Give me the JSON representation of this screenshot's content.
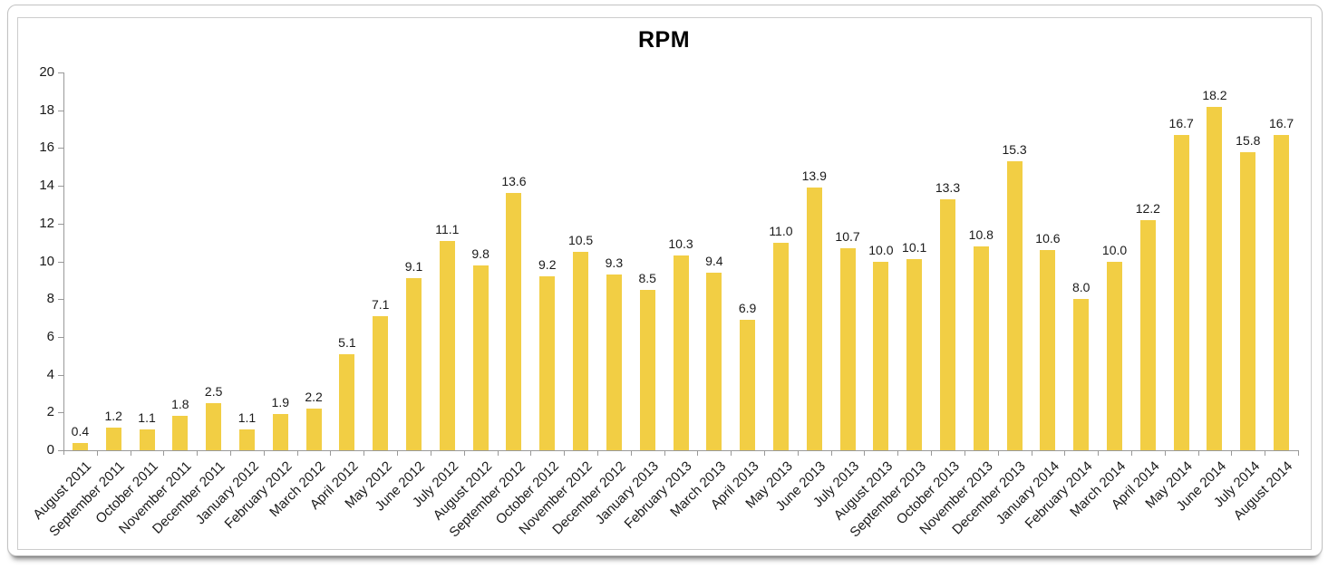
{
  "chart_data": {
    "type": "bar",
    "title": "RPM",
    "categories": [
      "August 2011",
      "September 2011",
      "October 2011",
      "November 2011",
      "December 2011",
      "January 2012",
      "February 2012",
      "March 2012",
      "April 2012",
      "May 2012",
      "June 2012",
      "July 2012",
      "August 2012",
      "September 2012",
      "October 2012",
      "November 2012",
      "December 2012",
      "January 2013",
      "February 2013",
      "March 2013",
      "April 2013",
      "May 2013",
      "June 2013",
      "July 2013",
      "August 2013",
      "September 2013",
      "October 2013",
      "November 2013",
      "December 2013",
      "January 2014",
      "February 2014",
      "March 2014",
      "April 2014",
      "May 2014",
      "June 2014",
      "July 2014",
      "August 2014"
    ],
    "values": [
      0.4,
      1.2,
      1.1,
      1.8,
      2.5,
      1.1,
      1.9,
      2.2,
      5.1,
      7.1,
      9.1,
      11.1,
      9.8,
      13.6,
      9.2,
      10.5,
      9.3,
      8.5,
      10.3,
      9.4,
      6.9,
      11.0,
      13.9,
      10.7,
      10.0,
      10.1,
      13.3,
      10.8,
      15.3,
      10.6,
      8.0,
      10.0,
      12.2,
      16.7,
      18.2,
      15.8,
      16.7
    ],
    "xlabel": "",
    "ylabel": "",
    "ylim": [
      0,
      20
    ],
    "ytick_step": 2,
    "value_labels_decimals": 1,
    "grid": false,
    "legend": "none",
    "bar_color": "#F2CE44",
    "axis_color": "#999999",
    "text_color": "#1a1a1a"
  }
}
